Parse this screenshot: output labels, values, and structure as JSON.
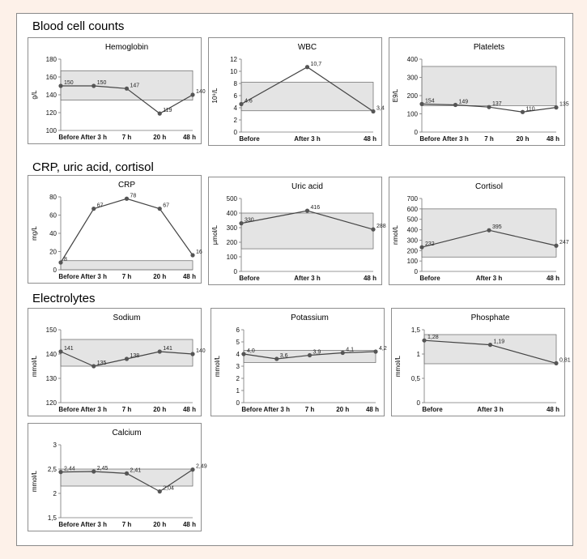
{
  "sections": [
    {
      "label": "Blood cell counts"
    },
    {
      "label": "CRP, uric acid, cortisol"
    },
    {
      "label": "Electrolytes"
    }
  ],
  "colors": {
    "band": "#e4e4e4",
    "line": "#444444",
    "marker": "#555555"
  },
  "chart_data": [
    {
      "type": "line",
      "title": "Hemoglobin",
      "ylabel": "g/L",
      "ylim": [
        100,
        180
      ],
      "yticks": [
        100,
        120,
        140,
        160,
        180
      ],
      "categories": [
        "Before",
        "After 3 h",
        "7 h",
        "20 h",
        "48 h"
      ],
      "values": [
        150,
        150,
        147,
        119,
        140
      ],
      "labels": [
        "150",
        "150",
        "147",
        "119",
        "140"
      ],
      "reference_band": [
        134,
        167
      ]
    },
    {
      "type": "line",
      "title": "WBC",
      "ylabel": "10⁹/L",
      "ylim": [
        0,
        12
      ],
      "yticks": [
        0,
        2,
        4,
        6,
        8,
        10,
        12
      ],
      "categories": [
        "Before",
        "After 3 h",
        "48 h"
      ],
      "values": [
        4.6,
        10.7,
        3.4
      ],
      "labels": [
        "4.6",
        "10,7",
        "3,4"
      ],
      "reference_band": [
        3.5,
        8.2
      ]
    },
    {
      "type": "line",
      "title": "Platelets",
      "ylabel": "E9/L",
      "ylim": [
        0,
        400
      ],
      "yticks": [
        0,
        100,
        200,
        300,
        400
      ],
      "categories": [
        "Before",
        "After 3 h",
        "7 h",
        "20 h",
        "48 h"
      ],
      "values": [
        154,
        149,
        137,
        110,
        135
      ],
      "labels": [
        "154",
        "149",
        "137",
        "110",
        "135"
      ],
      "reference_band": [
        145,
        360
      ]
    },
    {
      "type": "line",
      "title": "CRP",
      "ylabel": "mg/L",
      "ylim": [
        0,
        80
      ],
      "yticks": [
        0,
        20,
        40,
        60,
        80
      ],
      "categories": [
        "Before",
        "After 3 h",
        "7 h",
        "20 h",
        "48 h"
      ],
      "values": [
        8,
        67,
        78,
        67,
        16
      ],
      "labels": [
        "8",
        "67",
        "78",
        "67",
        "16"
      ],
      "reference_band": [
        0,
        10
      ]
    },
    {
      "type": "line",
      "title": "Uric acid",
      "ylabel": "µmol/L",
      "ylim": [
        0,
        500
      ],
      "yticks": [
        0,
        100,
        200,
        300,
        400,
        500
      ],
      "categories": [
        "Before",
        "After 3 h",
        "48 h"
      ],
      "values": [
        330,
        416,
        288
      ],
      "labels": [
        "330",
        "416",
        "288"
      ],
      "reference_band": [
        155,
        400
      ]
    },
    {
      "type": "line",
      "title": "Cortisol",
      "ylabel": "nmol/L",
      "ylim": [
        0,
        700
      ],
      "yticks": [
        0,
        100,
        200,
        300,
        400,
        500,
        600,
        700
      ],
      "categories": [
        "Before",
        "After 3 h",
        "48 h"
      ],
      "values": [
        232,
        395,
        247
      ],
      "labels": [
        "232",
        "395",
        "247"
      ],
      "reference_band": [
        138,
        600
      ]
    },
    {
      "type": "line",
      "title": "Sodium",
      "ylabel": "mmol/L",
      "ylim": [
        120,
        150
      ],
      "yticks": [
        120,
        130,
        140,
        150
      ],
      "categories": [
        "Before",
        "After 3 h",
        "7 h",
        "20 h",
        "48 h"
      ],
      "values": [
        141,
        135,
        138,
        141,
        140
      ],
      "labels": [
        "141",
        "135",
        "138",
        "141",
        "140"
      ],
      "reference_band": [
        135,
        146
      ]
    },
    {
      "type": "line",
      "title": "Potassium",
      "ylabel": "mmol/L",
      "ylim": [
        0,
        6
      ],
      "yticks": [
        0,
        1,
        2,
        3,
        4,
        5,
        6
      ],
      "categories": [
        "Before",
        "After 3 h",
        "7 h",
        "20 h",
        "48 h"
      ],
      "values": [
        4.0,
        3.6,
        3.9,
        4.1,
        4.2
      ],
      "labels": [
        "4,0",
        "3,6",
        "3,9",
        "4,1",
        "4,2"
      ],
      "reference_band": [
        3.3,
        4.3
      ]
    },
    {
      "type": "line",
      "title": "Phosphate",
      "ylabel": "mmol/L",
      "ylim": [
        0,
        1.5
      ],
      "yticks": [
        0,
        0.5,
        1,
        1.5
      ],
      "yticklabels": [
        "0",
        "0,5",
        "1",
        "1,5"
      ],
      "categories": [
        "Before",
        "After 3 h",
        "48 h"
      ],
      "values": [
        1.28,
        1.19,
        0.81
      ],
      "labels": [
        "1,28",
        "1,19",
        "0,81"
      ],
      "reference_band": [
        0.8,
        1.4
      ]
    },
    {
      "type": "line",
      "title": "Calcium",
      "ylabel": "mmol/L",
      "ylim": [
        1.5,
        3
      ],
      "yticks": [
        1.5,
        2,
        2.5,
        3
      ],
      "yticklabels": [
        "1,5",
        "2",
        "2,5",
        "3"
      ],
      "categories": [
        "Before",
        "After 3 h",
        "7 h",
        "20 h",
        "48 h"
      ],
      "values": [
        2.44,
        2.45,
        2.41,
        2.04,
        2.49
      ],
      "labels": [
        "2,44",
        "2,45",
        "2,41",
        "2,04",
        "2,49"
      ],
      "reference_band": [
        2.15,
        2.5
      ]
    }
  ]
}
